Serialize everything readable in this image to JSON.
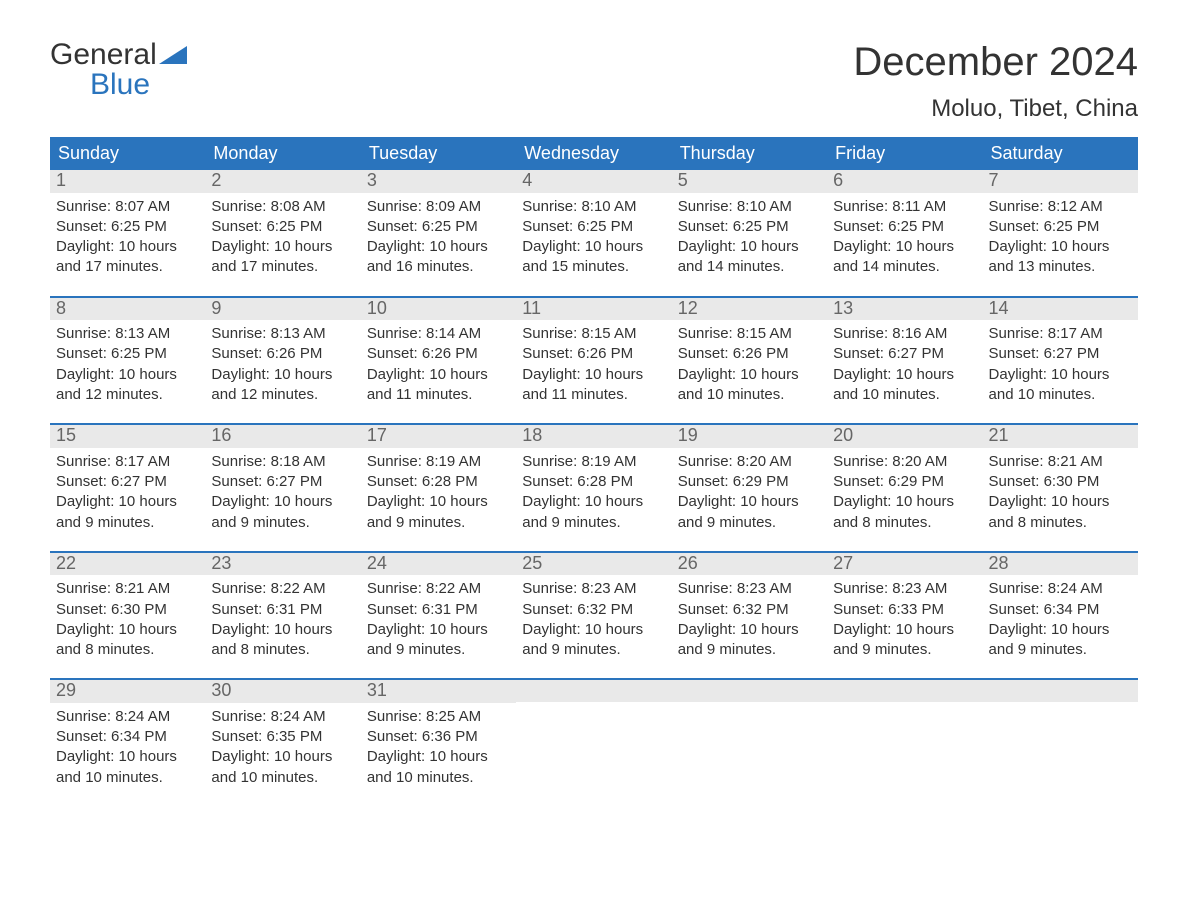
{
  "logo": {
    "line1": "General",
    "line2": "Blue"
  },
  "header": {
    "month_title": "December 2024",
    "location": "Moluo, Tibet, China"
  },
  "styling": {
    "page_bg": "#ffffff",
    "header_bar_bg": "#2a74bd",
    "header_bar_text": "#ffffff",
    "daynum_bg": "#e9e9e9",
    "daynum_text": "#666666",
    "body_text": "#333333",
    "row_divider": "#2a74bd",
    "month_title_fontsize": 40,
    "location_fontsize": 24,
    "weekday_fontsize": 18,
    "daynum_fontsize": 18,
    "daybody_fontsize": 15,
    "columns": 7,
    "rows": 5
  },
  "weekdays": [
    "Sunday",
    "Monday",
    "Tuesday",
    "Wednesday",
    "Thursday",
    "Friday",
    "Saturday"
  ],
  "labels": {
    "sunrise": "Sunrise:",
    "sunset": "Sunset:",
    "daylight": "Daylight:"
  },
  "weeks": [
    [
      {
        "n": "1",
        "sr": "8:07 AM",
        "ss": "6:25 PM",
        "dh": "10",
        "dm": "17"
      },
      {
        "n": "2",
        "sr": "8:08 AM",
        "ss": "6:25 PM",
        "dh": "10",
        "dm": "17"
      },
      {
        "n": "3",
        "sr": "8:09 AM",
        "ss": "6:25 PM",
        "dh": "10",
        "dm": "16"
      },
      {
        "n": "4",
        "sr": "8:10 AM",
        "ss": "6:25 PM",
        "dh": "10",
        "dm": "15"
      },
      {
        "n": "5",
        "sr": "8:10 AM",
        "ss": "6:25 PM",
        "dh": "10",
        "dm": "14"
      },
      {
        "n": "6",
        "sr": "8:11 AM",
        "ss": "6:25 PM",
        "dh": "10",
        "dm": "14"
      },
      {
        "n": "7",
        "sr": "8:12 AM",
        "ss": "6:25 PM",
        "dh": "10",
        "dm": "13"
      }
    ],
    [
      {
        "n": "8",
        "sr": "8:13 AM",
        "ss": "6:25 PM",
        "dh": "10",
        "dm": "12"
      },
      {
        "n": "9",
        "sr": "8:13 AM",
        "ss": "6:26 PM",
        "dh": "10",
        "dm": "12"
      },
      {
        "n": "10",
        "sr": "8:14 AM",
        "ss": "6:26 PM",
        "dh": "10",
        "dm": "11"
      },
      {
        "n": "11",
        "sr": "8:15 AM",
        "ss": "6:26 PM",
        "dh": "10",
        "dm": "11"
      },
      {
        "n": "12",
        "sr": "8:15 AM",
        "ss": "6:26 PM",
        "dh": "10",
        "dm": "10"
      },
      {
        "n": "13",
        "sr": "8:16 AM",
        "ss": "6:27 PM",
        "dh": "10",
        "dm": "10"
      },
      {
        "n": "14",
        "sr": "8:17 AM",
        "ss": "6:27 PM",
        "dh": "10",
        "dm": "10"
      }
    ],
    [
      {
        "n": "15",
        "sr": "8:17 AM",
        "ss": "6:27 PM",
        "dh": "10",
        "dm": "9"
      },
      {
        "n": "16",
        "sr": "8:18 AM",
        "ss": "6:27 PM",
        "dh": "10",
        "dm": "9"
      },
      {
        "n": "17",
        "sr": "8:19 AM",
        "ss": "6:28 PM",
        "dh": "10",
        "dm": "9"
      },
      {
        "n": "18",
        "sr": "8:19 AM",
        "ss": "6:28 PM",
        "dh": "10",
        "dm": "9"
      },
      {
        "n": "19",
        "sr": "8:20 AM",
        "ss": "6:29 PM",
        "dh": "10",
        "dm": "9"
      },
      {
        "n": "20",
        "sr": "8:20 AM",
        "ss": "6:29 PM",
        "dh": "10",
        "dm": "8"
      },
      {
        "n": "21",
        "sr": "8:21 AM",
        "ss": "6:30 PM",
        "dh": "10",
        "dm": "8"
      }
    ],
    [
      {
        "n": "22",
        "sr": "8:21 AM",
        "ss": "6:30 PM",
        "dh": "10",
        "dm": "8"
      },
      {
        "n": "23",
        "sr": "8:22 AM",
        "ss": "6:31 PM",
        "dh": "10",
        "dm": "8"
      },
      {
        "n": "24",
        "sr": "8:22 AM",
        "ss": "6:31 PM",
        "dh": "10",
        "dm": "9"
      },
      {
        "n": "25",
        "sr": "8:23 AM",
        "ss": "6:32 PM",
        "dh": "10",
        "dm": "9"
      },
      {
        "n": "26",
        "sr": "8:23 AM",
        "ss": "6:32 PM",
        "dh": "10",
        "dm": "9"
      },
      {
        "n": "27",
        "sr": "8:23 AM",
        "ss": "6:33 PM",
        "dh": "10",
        "dm": "9"
      },
      {
        "n": "28",
        "sr": "8:24 AM",
        "ss": "6:34 PM",
        "dh": "10",
        "dm": "9"
      }
    ],
    [
      {
        "n": "29",
        "sr": "8:24 AM",
        "ss": "6:34 PM",
        "dh": "10",
        "dm": "10"
      },
      {
        "n": "30",
        "sr": "8:24 AM",
        "ss": "6:35 PM",
        "dh": "10",
        "dm": "10"
      },
      {
        "n": "31",
        "sr": "8:25 AM",
        "ss": "6:36 PM",
        "dh": "10",
        "dm": "10"
      },
      null,
      null,
      null,
      null
    ]
  ]
}
